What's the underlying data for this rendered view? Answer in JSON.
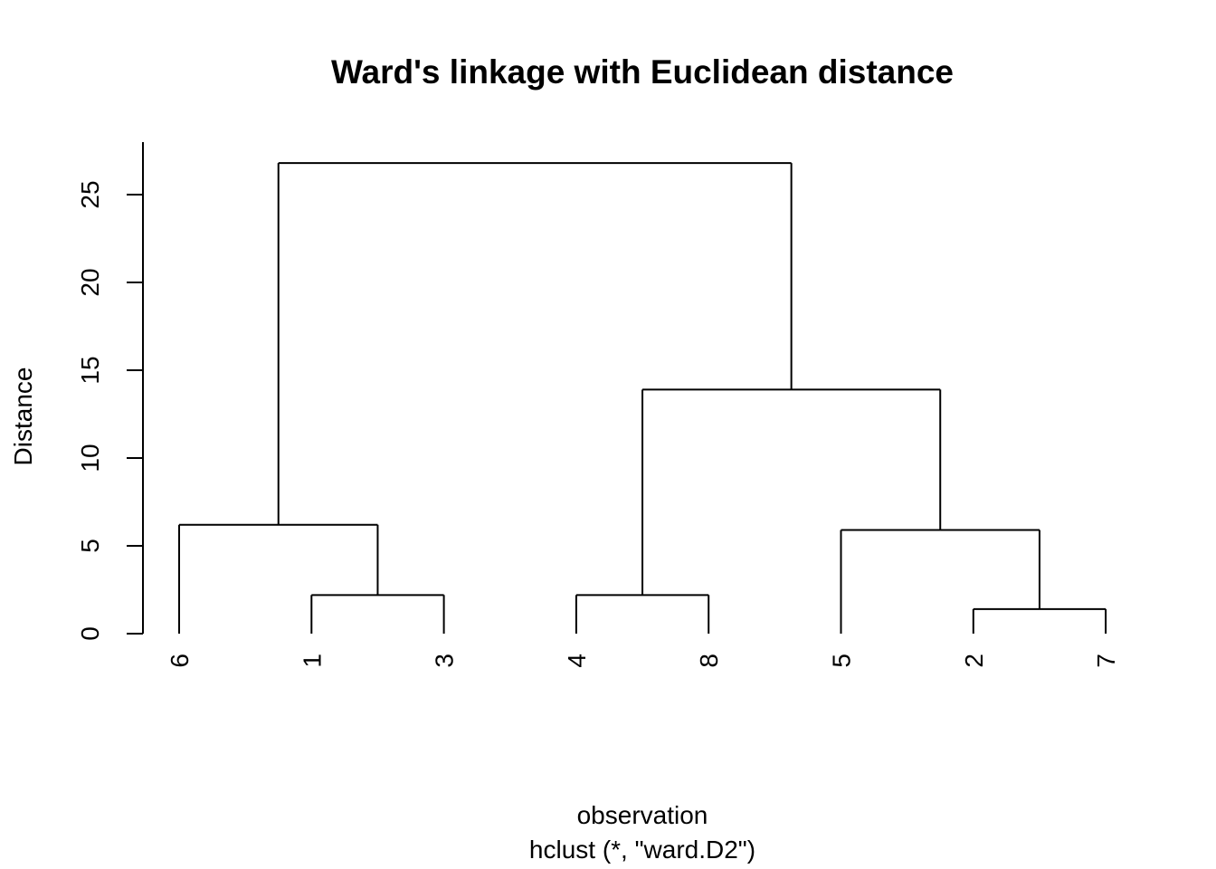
{
  "chart_data": {
    "type": "dendrogram",
    "title": "Ward's linkage with Euclidean distance",
    "xlabel": "observation",
    "sub": "hclust (*, \"ward.D2\")",
    "ylabel": "Distance",
    "ylim": [
      0,
      28
    ],
    "yticks": [
      0,
      5,
      10,
      15,
      20,
      25
    ],
    "ytick_labels": [
      "0",
      "5",
      "10",
      "15",
      "20",
      "25"
    ],
    "leaf_order": [
      "6",
      "1",
      "3",
      "4",
      "8",
      "5",
      "2",
      "7"
    ],
    "merges": [
      {
        "members": [
          "2",
          "7"
        ],
        "height": 1.4
      },
      {
        "members": [
          "1",
          "3"
        ],
        "height": 2.2
      },
      {
        "members": [
          "4",
          "8"
        ],
        "height": 2.2
      },
      {
        "members": [
          "5",
          "2",
          "7"
        ],
        "height": 5.9
      },
      {
        "members": [
          "6",
          "1",
          "3"
        ],
        "height": 6.2
      },
      {
        "members": [
          "4",
          "8",
          "5",
          "2",
          "7"
        ],
        "height": 13.9
      },
      {
        "members": [
          "6",
          "1",
          "3",
          "4",
          "8",
          "5",
          "2",
          "7"
        ],
        "height": 26.8
      }
    ]
  }
}
